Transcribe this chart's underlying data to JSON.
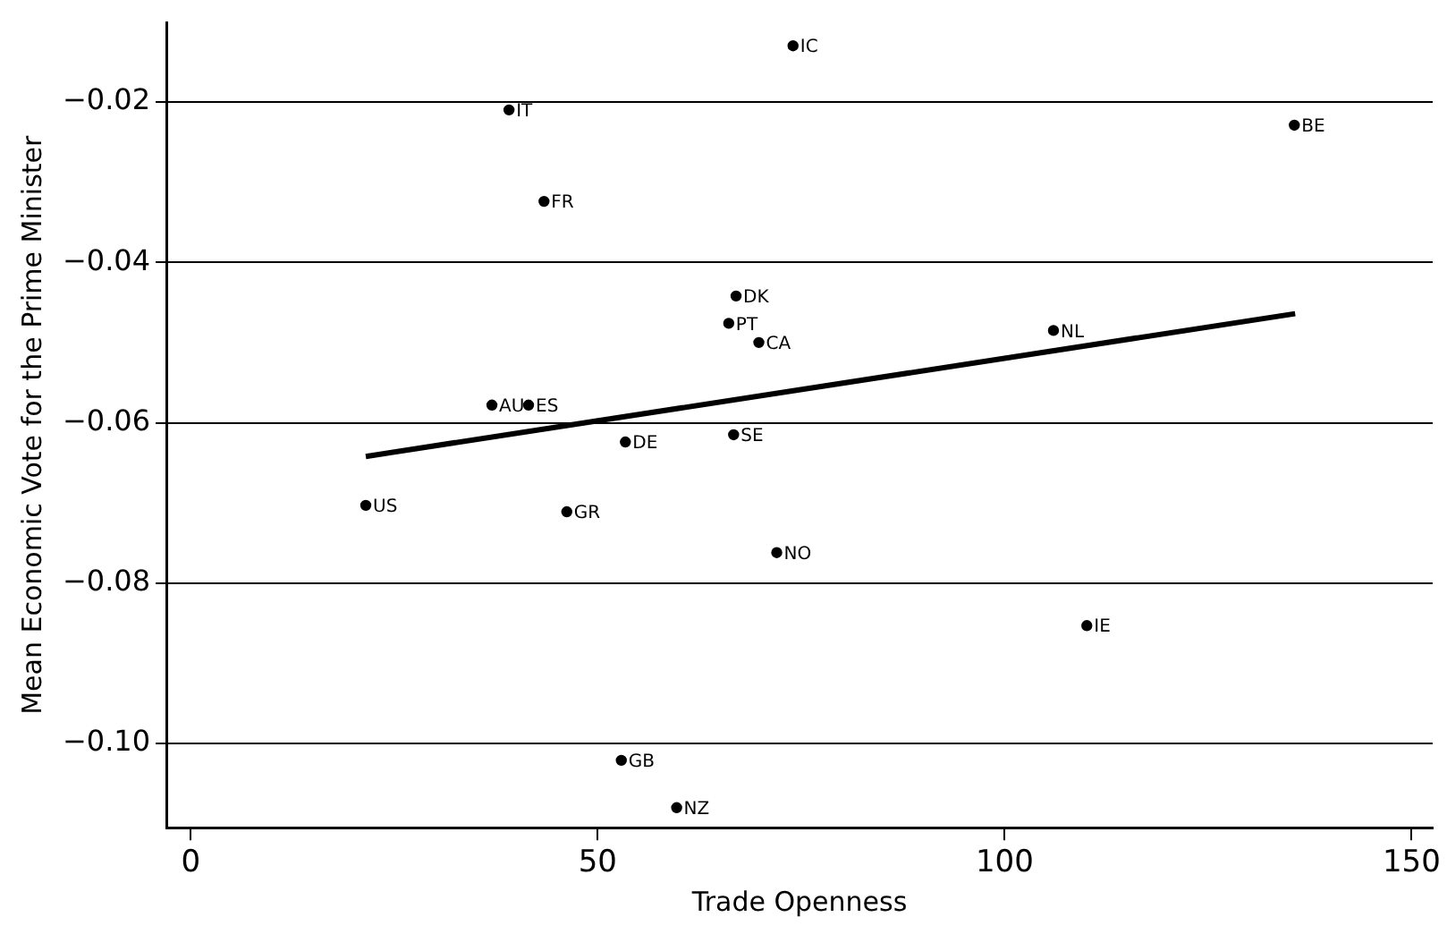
{
  "chart_data": {
    "type": "scatter",
    "xlabel": "Trade Openness",
    "ylabel": "Mean Economic Vote for the Prime Minister",
    "xlim": [
      -3,
      152.6
    ],
    "ylim": [
      -0.1105,
      -0.0101
    ],
    "xticks": [
      0,
      50,
      100,
      150
    ],
    "yticks": [
      {
        "value": -0.1,
        "label": "−0.10"
      },
      {
        "value": -0.08,
        "label": "−0.08"
      },
      {
        "value": -0.06,
        "label": "−0.06"
      },
      {
        "value": -0.04,
        "label": "−0.04"
      },
      {
        "value": -0.02,
        "label": "−0.02"
      }
    ],
    "grid": "y",
    "marker": "circle",
    "legend": false,
    "series": [
      {
        "color": "#000000",
        "x": [
          74.0,
          39.1,
          43.4,
          67.0,
          66.1,
          69.8,
          37.0,
          41.5,
          53.4,
          66.7,
          135.6,
          106.0,
          21.5,
          46.2,
          72.0,
          52.9,
          59.7,
          110.1
        ],
        "values": [
          -0.013,
          -0.021,
          -0.0324,
          -0.0442,
          -0.0476,
          -0.05,
          -0.0578,
          -0.0578,
          -0.0624,
          -0.0615,
          -0.0229,
          -0.0485,
          -0.0703,
          -0.0711,
          -0.0762,
          -0.1021,
          -0.108,
          -0.0853
        ]
      },
      {
        "type": "line",
        "color": "#000000",
        "marker": "none",
        "x": [
          21.5,
          135.7
        ],
        "values": [
          -0.0642,
          -0.0464
        ]
      }
    ],
    "annotations": [
      {
        "text": "IC",
        "x": 74.0,
        "y": -0.013
      },
      {
        "text": "IT",
        "x": 39.1,
        "y": -0.021
      },
      {
        "text": "FR",
        "x": 43.4,
        "y": -0.0324
      },
      {
        "text": "DK",
        "x": 67.0,
        "y": -0.0442
      },
      {
        "text": "PT",
        "x": 66.1,
        "y": -0.0476
      },
      {
        "text": "CA",
        "x": 69.8,
        "y": -0.05
      },
      {
        "text": "AU",
        "x": 37.0,
        "y": -0.0578
      },
      {
        "text": "ES",
        "x": 41.5,
        "y": -0.0578
      },
      {
        "text": "DE",
        "x": 53.4,
        "y": -0.0624
      },
      {
        "text": "SE",
        "x": 66.7,
        "y": -0.0615
      },
      {
        "text": "BE",
        "x": 135.6,
        "y": -0.0229
      },
      {
        "text": "NL",
        "x": 106.0,
        "y": -0.0485
      },
      {
        "text": "US",
        "x": 21.5,
        "y": -0.0703
      },
      {
        "text": "GR",
        "x": 46.2,
        "y": -0.0711
      },
      {
        "text": "NO",
        "x": 72.0,
        "y": -0.0762
      },
      {
        "text": "GB",
        "x": 52.9,
        "y": -0.1021
      },
      {
        "text": "NZ",
        "x": 59.7,
        "y": -0.108
      },
      {
        "text": "IE",
        "x": 110.1,
        "y": -0.0853
      }
    ]
  }
}
